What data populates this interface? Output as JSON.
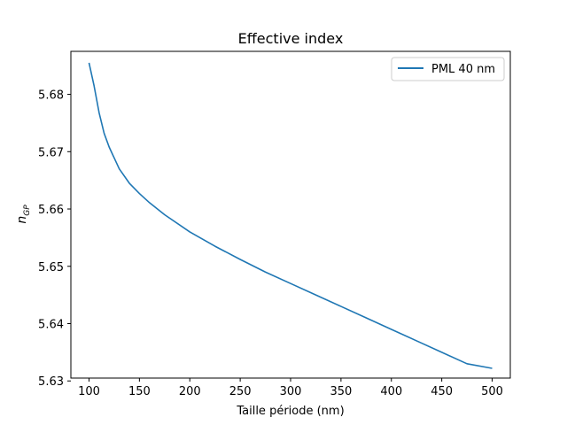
{
  "chart_data": {
    "type": "line",
    "title": "Effective index",
    "xlabel": "Taille période (nm)",
    "ylabel": {
      "base": "n",
      "subscript": "GP"
    },
    "xlim": [
      82,
      518
    ],
    "ylim": [
      5.6305,
      5.6875
    ],
    "xticks": [
      100,
      150,
      200,
      250,
      300,
      350,
      400,
      450,
      500
    ],
    "xtick_labels": [
      "100",
      "150",
      "200",
      "250",
      "300",
      "350",
      "400",
      "450",
      "500"
    ],
    "yticks": [
      5.63,
      5.64,
      5.65,
      5.66,
      5.67,
      5.68
    ],
    "ytick_labels": [
      "5.63",
      "5.64",
      "5.65",
      "5.66",
      "5.67",
      "5.68"
    ],
    "grid": false,
    "legend_position": "top-right",
    "series": [
      {
        "name": "PML 40 nm",
        "color": "#1f77b4",
        "x": [
          100,
          105,
          110,
          115,
          120,
          130,
          140,
          150,
          160,
          175,
          200,
          225,
          250,
          275,
          300,
          325,
          350,
          375,
          400,
          425,
          450,
          475,
          500
        ],
        "y": [
          5.6855,
          5.6815,
          5.6768,
          5.6732,
          5.6708,
          5.667,
          5.6645,
          5.6627,
          5.6611,
          5.659,
          5.656,
          5.6535,
          5.6512,
          5.649,
          5.647,
          5.645,
          5.643,
          5.641,
          5.639,
          5.637,
          5.635,
          5.633,
          5.6322
        ]
      }
    ]
  }
}
